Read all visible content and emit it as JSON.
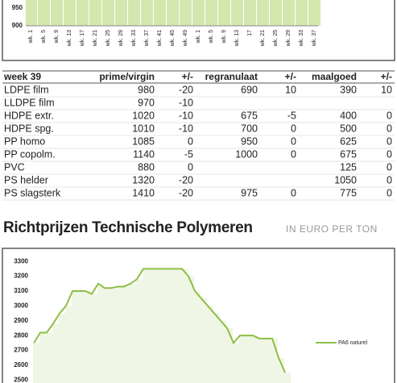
{
  "chart_data": [
    {
      "type": "bar",
      "color": "#b7d77a",
      "categories": [
        "wk. 1",
        "wk. 5",
        "wk. 9",
        "wk. 13",
        "wk. 17",
        "wk. 21",
        "wk. 25",
        "wk. 29",
        "wk. 33",
        "wk. 37",
        "wk. 41",
        "wk. 45",
        "wk. 49",
        "wk. 1",
        "wk. 5",
        "wk. 9",
        "wk. 13",
        "17",
        "wk. 21",
        "wk. 25",
        "wk. 29",
        "wk. 33",
        "wk. 37"
      ],
      "values": [
        1000,
        1000,
        1000,
        1000,
        1000,
        1000,
        1000,
        1000,
        1000,
        1000,
        1000,
        1000,
        1000,
        1000,
        1000,
        1000,
        1000,
        1000,
        1000,
        1000,
        1000,
        1000,
        1000
      ],
      "ylim": [
        900,
        973
      ],
      "yticks": [
        900,
        950
      ]
    },
    {
      "type": "line",
      "color": "#8dbf45",
      "categories": [
        null,
        null,
        null,
        null,
        null,
        null,
        null,
        null,
        null,
        null,
        null,
        null,
        null,
        null,
        null,
        null,
        null,
        null,
        null,
        null,
        null,
        null,
        null,
        null,
        null,
        null,
        null,
        null,
        null,
        null,
        null,
        null,
        null,
        null,
        null,
        null,
        null,
        null,
        null,
        null
      ],
      "series": [
        {
          "name": "PA6 naturel",
          "color": "#8dbf45",
          "values": [
            2750,
            2820,
            2820,
            2880,
            2950,
            3000,
            3100,
            3100,
            3100,
            3080,
            3150,
            3120,
            3120,
            3130,
            3130,
            3150,
            3180,
            3250,
            3250,
            3250,
            3250,
            3250,
            3250,
            3250,
            3200,
            3100,
            3050,
            3000,
            2950,
            2900,
            2850,
            2750,
            2800,
            2800,
            2800,
            2780,
            2780,
            2780,
            2650,
            2550
          ]
        }
      ],
      "ylim": [
        2480,
        3350
      ],
      "yticks": [
        2500,
        2600,
        2700,
        2800,
        2900,
        3000,
        3100,
        3200,
        3300
      ]
    }
  ],
  "table": {
    "header": [
      "week 39",
      "prime/virgin",
      "+/-",
      "regranulaat",
      "+/-",
      "maalgoed",
      "+/-"
    ],
    "rows": [
      [
        "LDPE film",
        "980",
        "-20",
        "690",
        "10",
        "390",
        "10"
      ],
      [
        "LLDPE film",
        "970",
        "-10",
        null,
        null,
        null,
        null
      ],
      [
        "HDPE extr.",
        "1020",
        "-10",
        "675",
        "-5",
        "400",
        "0"
      ],
      [
        "HDPE spg.",
        "1010",
        "-10",
        "700",
        "0",
        "500",
        "0"
      ],
      [
        "PP homo",
        "1085",
        "0",
        "950",
        "0",
        "625",
        "0"
      ],
      [
        "PP copolm.",
        "1140",
        "-5",
        "1000",
        "0",
        "675",
        "0"
      ],
      [
        "PVC",
        "880",
        "0",
        null,
        null,
        "125",
        "0"
      ],
      [
        "PS helder",
        "1320",
        "-20",
        null,
        null,
        "1050",
        "0"
      ],
      [
        "PS slagsterk",
        "1410",
        "-20",
        "975",
        "0",
        "775",
        "0"
      ]
    ]
  },
  "heading": {
    "title": "Richtprijzen Technische Polymeren",
    "unit": "IN EURO PER TON"
  }
}
